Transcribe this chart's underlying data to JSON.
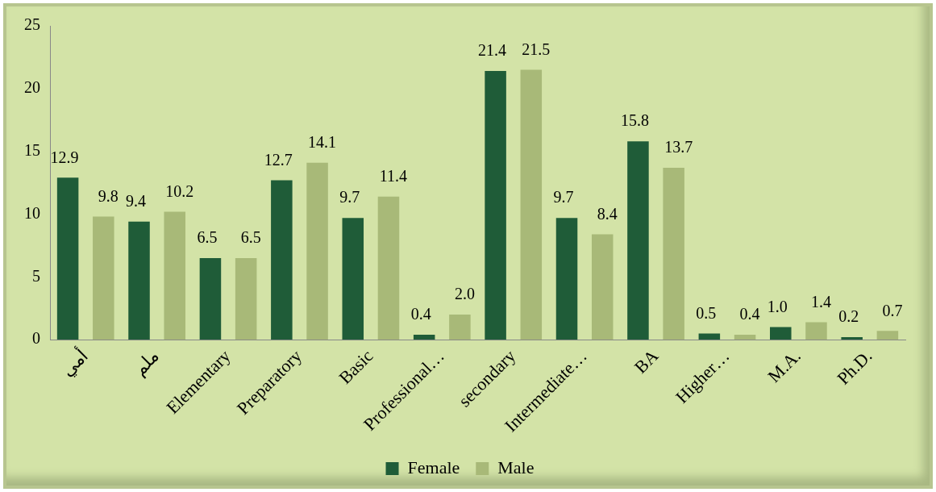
{
  "chart_data": {
    "type": "bar",
    "categories": [
      "أمي",
      "ملم",
      "Elementary",
      "Preparatory",
      "Basic",
      "Professional…",
      "secondary",
      "Intermediate…",
      "BA",
      "Higher…",
      "M.A.",
      "Ph.D."
    ],
    "series": [
      {
        "name": "Female",
        "color": "#1f5c38",
        "values": [
          12.9,
          9.4,
          6.5,
          12.7,
          9.7,
          0.4,
          21.4,
          9.7,
          15.8,
          0.5,
          1.0,
          0.2
        ],
        "value_labels": [
          "12.9",
          "9.4",
          "6.5",
          "12.7",
          "9.7",
          "0.4",
          "21.4",
          "9.7",
          "15.8",
          "0.5",
          "1.0",
          "0.2"
        ]
      },
      {
        "name": "Male",
        "color": "#a8b978",
        "values": [
          9.8,
          10.2,
          6.5,
          14.1,
          11.4,
          2.0,
          21.5,
          8.4,
          13.7,
          0.4,
          1.4,
          0.7
        ],
        "value_labels": [
          "9.8",
          "10.2",
          "6.5",
          "14.1",
          "11.4",
          "2.0",
          "21.5",
          "8.4",
          "13.7",
          "0.4",
          "1.4",
          "0.7"
        ]
      }
    ],
    "ylim": [
      0,
      25
    ],
    "yticks": [
      0,
      5,
      10,
      15,
      20,
      25
    ],
    "grid": false,
    "legend": "bottom"
  }
}
